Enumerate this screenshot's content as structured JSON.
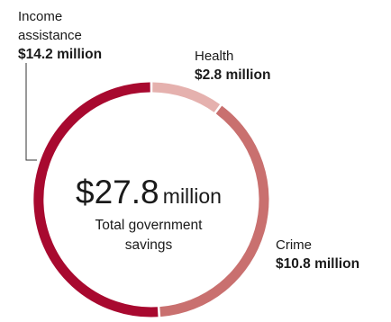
{
  "chart_data": {
    "type": "pie",
    "style": "donut",
    "categories": [
      "Health",
      "Crime",
      "Income assistance"
    ],
    "values": [
      2.8,
      10.8,
      14.2
    ],
    "value_labels": [
      "$2.8 million",
      "$10.8 million",
      "$14.2 million"
    ],
    "colors": [
      "#e5b1ae",
      "#c9706f",
      "#a8092f"
    ],
    "center": {
      "amount": "$27.8",
      "unit": "million",
      "caption_line1": "Total government",
      "caption_line2": "savings"
    }
  },
  "labels": {
    "income_line1": "Income",
    "income_line2": "assistance",
    "income_value": "$14.2 million",
    "health_name": "Health",
    "health_value": "$2.8 million",
    "crime_name": "Crime",
    "crime_value": "$10.8 million"
  }
}
